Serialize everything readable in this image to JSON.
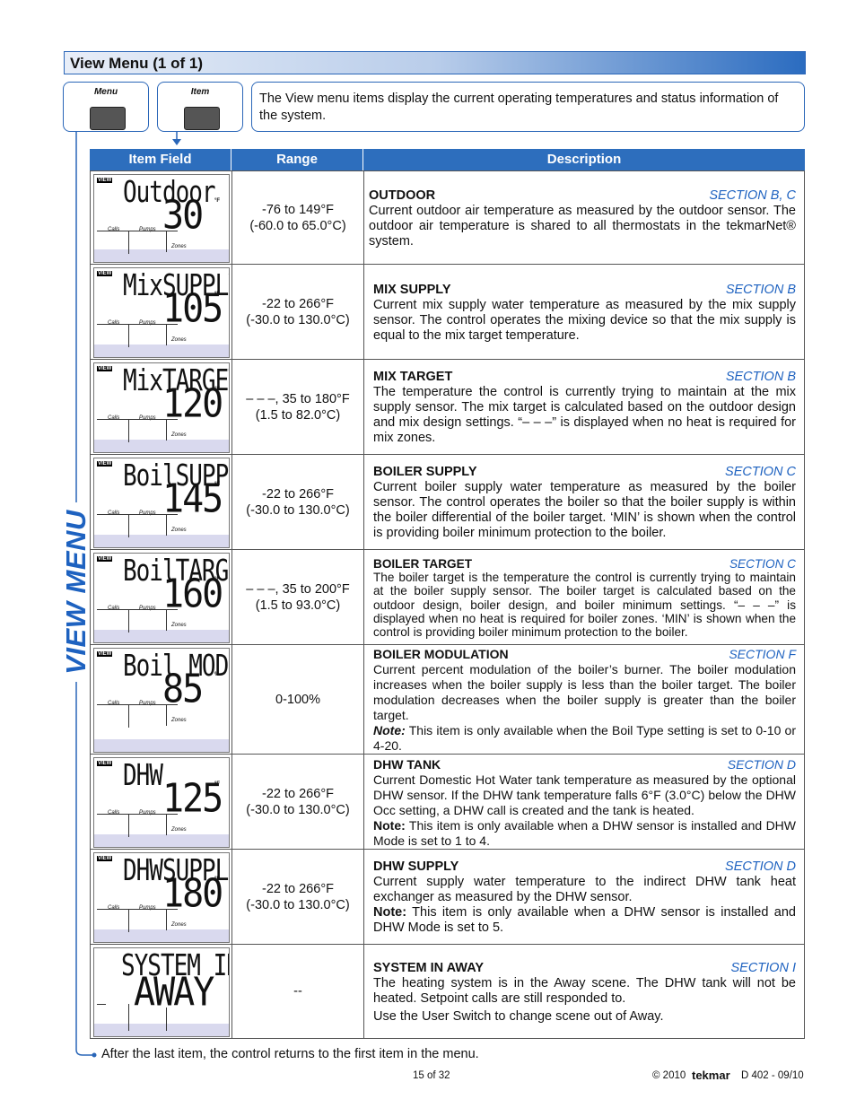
{
  "header": {
    "title": "View Menu (1 of 1)"
  },
  "buttons": [
    "Menu",
    "Item"
  ],
  "intro": "The View menu items display the current operating temperatures and status information of the system.",
  "side_label": "VIEW MENU",
  "lcd_labels": {
    "view": "VIEW",
    "calls": "Calls",
    "pumps": "Pumps",
    "zones": "Zones"
  },
  "table": {
    "headers": [
      "Item Field",
      "Range",
      "Description"
    ],
    "rows": [
      {
        "display": {
          "line1": "Outdoor",
          "line2": "30",
          "unit": "°F",
          "status_icons": true
        },
        "range": [
          "-76 to 149°F",
          "(-60.0 to 65.0°C)"
        ],
        "title": "OUTDOOR",
        "section": "SECTION B, C",
        "paragraphs": [
          "Current outdoor air temperature as measured by the outdoor sensor. The outdoor air temperature is shared to all thermostats in the tekmarNet® system."
        ]
      },
      {
        "display": {
          "line1": "MixSUPPLY",
          "line2": "105",
          "unit": "°F",
          "status_icons": true
        },
        "range": [
          "-22 to 266°F",
          "(-30.0 to 130.0°C)"
        ],
        "title": "MIX SUPPLY",
        "section": "SECTION B",
        "paragraphs": [
          "Current mix supply water temperature as measured by the mix supply sensor. The control operates the mixing device so that the mix supply is equal to the mix target temperature."
        ]
      },
      {
        "display": {
          "line1": "MixTARGET",
          "line2": "120",
          "unit": "°F",
          "status_icons": true
        },
        "range": [
          "– – –, 35 to 180°F",
          "(1.5 to 82.0°C)"
        ],
        "title": "MIX TARGET",
        "section": "SECTION B",
        "paragraphs": [
          "The temperature the control is currently trying to maintain at the mix supply sensor. The mix target is calculated based on the outdoor design and mix design settings. “– – –” is displayed when no heat is required for mix zones."
        ]
      },
      {
        "display": {
          "line1": "BoilSUPPLY",
          "line2": "145",
          "unit": "°F",
          "status_icons": true
        },
        "range": [
          "-22 to 266°F",
          "(-30.0 to 130.0°C)"
        ],
        "title": "BOILER SUPPLY",
        "section": "SECTION C",
        "paragraphs": [
          "Current boiler supply water temperature as measured by the boiler sensor. The control operates the boiler so that the boiler supply is within the boiler differential of the boiler target. ‘MIN’ is shown when the control is providing boiler minimum protection to the boiler."
        ]
      },
      {
        "display": {
          "line1": "BoilTARGET",
          "line2": "160",
          "unit": "°F",
          "status_icons": true
        },
        "range": [
          "– – –, 35 to 200°F",
          "(1.5 to 93.0°C)"
        ],
        "title": "BOILER TARGET",
        "section": "SECTION C",
        "paragraphs": [
          "The boiler target is the temperature the control is currently trying to maintain at the boiler supply sensor. The boiler target is calculated based on the outdoor design, boiler design, and boiler minimum settings. “– – –” is displayed when no heat is required for boiler zones. ‘MIN’ is shown when the control is providing boiler minimum protection to the boiler."
        ]
      },
      {
        "display": {
          "line1": "Boil MOD",
          "line2": "85",
          "unit": "%",
          "status_icons": true
        },
        "range": [
          "0-100%"
        ],
        "title": "BOILER MODULATION",
        "section": "SECTION F",
        "paragraphs": [
          "Current percent modulation of the boiler’s burner. The boiler modulation increases when the boiler supply is less than the boiler target. The boiler modulation decreases when the boiler supply is greater than the boiler target."
        ],
        "note": {
          "label": "Note:",
          "text": "This item is only available when the Boil Type setting is set to 0-10 or 4-20."
        }
      },
      {
        "display": {
          "line1": "DHW",
          "line2": "125",
          "unit": "°F",
          "status_icons": true
        },
        "range": [
          "-22 to 266°F",
          "(-30.0 to 130.0°C)"
        ],
        "title": "DHW TANK",
        "section": "SECTION D",
        "paragraphs": [
          "Current Domestic Hot Water tank temperature as measured by the optional DHW sensor. If the DHW tank temperature falls 6°F (3.0°C) below the DHW Occ setting, a DHW call is created and the tank is heated."
        ],
        "note": {
          "label": "Note:",
          "text": "This item is only available when a DHW sensor is installed and DHW Mode is set to 1 to 4."
        }
      },
      {
        "display": {
          "line1": "DHWSUPPLY",
          "line2": "180",
          "unit": "°F",
          "status_icons": true
        },
        "range": [
          "-22 to 266°F",
          "(-30.0 to 130.0°C)"
        ],
        "title": "DHW SUPPLY",
        "section": "SECTION D",
        "paragraphs": [
          "Current supply water temperature to the indirect DHW tank heat exchanger as measured by the DHW sensor."
        ],
        "note": {
          "label": "Note:",
          "text": "This item is only available when a DHW sensor is installed and DHW Mode is set to 5."
        }
      },
      {
        "display": {
          "line1": "SYSTEM IN",
          "line2": "AWAY",
          "status_icons": false
        },
        "range": [
          "--"
        ],
        "title": "SYSTEM IN AWAY",
        "section": "SECTION I",
        "paragraphs": [
          "The heating system is in the Away scene. The DHW tank will not be heated. Setpoint calls are still responded to.",
          "Use the User Switch to change scene out of Away."
        ]
      }
    ]
  },
  "footer": {
    "note": "After the last item, the control returns to the first item in the menu.",
    "page": "15 of 32",
    "copyright": "© 2010",
    "brand": "tekmar",
    "doc": "D 402 - 09/10"
  }
}
